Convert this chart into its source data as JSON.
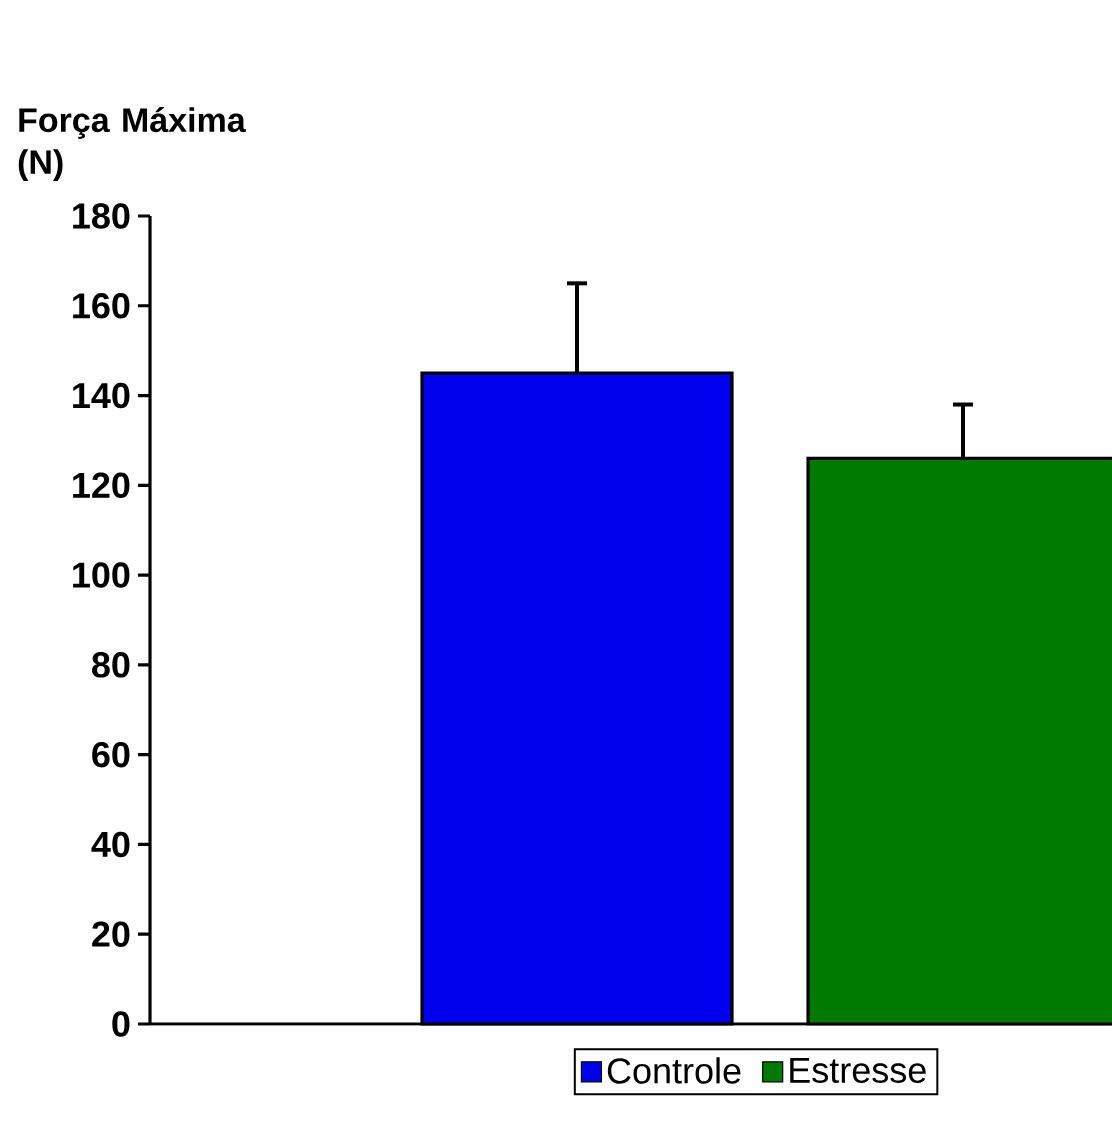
{
  "chart_data": {
    "type": "bar",
    "ylabel": "Força Máxima (N)",
    "categories": [
      null
    ],
    "series": [
      {
        "name": "Controle",
        "color": "#0000ee",
        "values": [
          145
        ],
        "errors": [
          [
            145,
            165
          ]
        ]
      },
      {
        "name": "Estresse",
        "color": "#007a00",
        "values": [
          126
        ],
        "errors": [
          [
            126,
            138
          ]
        ]
      }
    ],
    "ylim": [
      0,
      180
    ],
    "yticks": [
      0,
      20,
      40,
      60,
      80,
      100,
      120,
      140,
      160,
      180
    ],
    "legend": "bottom",
    "grid": false
  }
}
